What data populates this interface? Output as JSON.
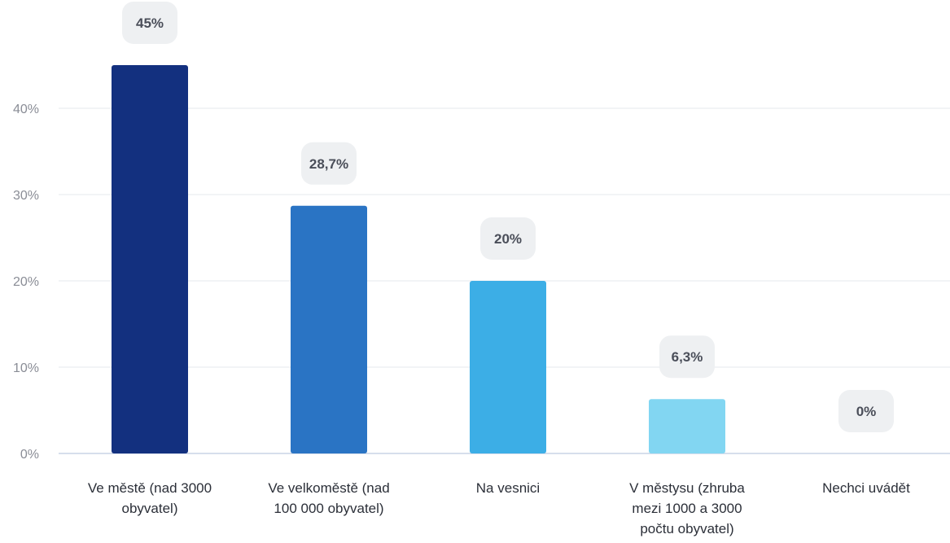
{
  "chart_data": {
    "type": "bar",
    "categories": [
      [
        "Ve městě (nad 3000",
        "obyvatel)"
      ],
      [
        "Ve velkoměstě (nad",
        "100 000 obyvatel)"
      ],
      [
        "Na vesnici"
      ],
      [
        "V městysu (zhruba",
        "mezi 1000 a 3000",
        "počtu obyvatel)"
      ],
      [
        "Nechci uvádět"
      ]
    ],
    "values": [
      45,
      28.7,
      20,
      6.3,
      0
    ],
    "value_labels": [
      "45%",
      "28,7%",
      "20%",
      "6,3%",
      "0%"
    ],
    "bar_colors": [
      "#13307f",
      "#2a74c4",
      "#3caee6",
      "#82d6f2",
      "#82d6f2"
    ],
    "y_ticks": [
      0,
      10,
      20,
      30,
      40
    ],
    "y_tick_labels": [
      "0%",
      "10%",
      "20%",
      "30%",
      "40%"
    ],
    "ylim": [
      0,
      45
    ],
    "grid": true,
    "legend": false
  }
}
